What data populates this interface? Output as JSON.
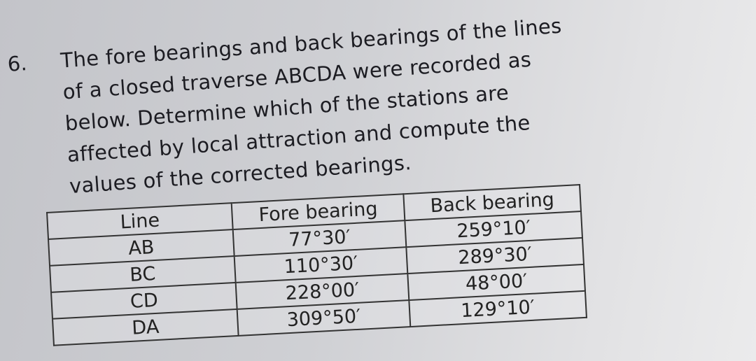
{
  "question": {
    "number": "6.",
    "lines": [
      "The fore bearings and back bearings of the lines",
      "of a closed traverse ABCDA were recorded as",
      "below. Determine which of the stations are",
      "affected by local attraction and compute the",
      "values of the corrected bearings."
    ]
  },
  "table": {
    "headers": [
      "Line",
      "Fore bearing",
      "Back bearing"
    ],
    "rows": [
      [
        "AB",
        "77°30′",
        "259°10′"
      ],
      [
        "BC",
        "110°30′",
        "289°30′"
      ],
      [
        "CD",
        "228°00′",
        "48°00′"
      ],
      [
        "DA",
        "309°50′",
        "129°10′"
      ]
    ]
  }
}
